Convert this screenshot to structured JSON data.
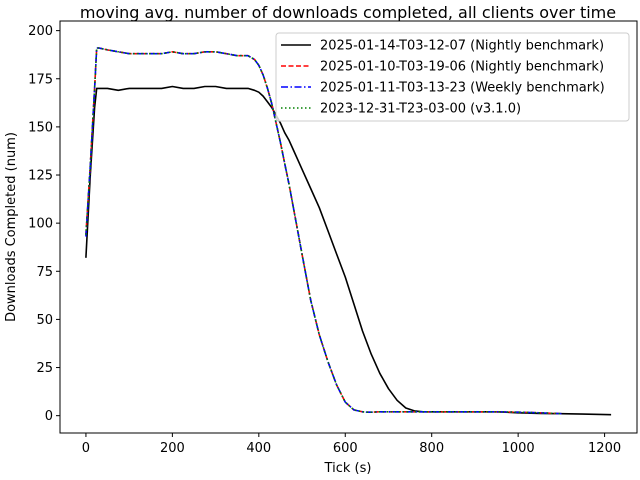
{
  "chart_data": {
    "type": "line",
    "title": "moving avg. number of downloads completed, all clients over time",
    "xlabel": "Tick (s)",
    "ylabel": "Downloads Completed (num)",
    "xlim": [
      -60,
      1275
    ],
    "ylim": [
      -9,
      205
    ],
    "xticks": [
      0,
      200,
      400,
      600,
      800,
      1000,
      1200
    ],
    "yticks": [
      0,
      25,
      50,
      75,
      100,
      125,
      150,
      175,
      200
    ],
    "grid": false,
    "legend_position": "top-right",
    "series": [
      {
        "name": "2025-01-14-T03-12-07 (Nightly benchmark)",
        "color": "#000000",
        "dash": "solid",
        "x": [
          0,
          10,
          20,
          25,
          30,
          50,
          75,
          100,
          125,
          150,
          175,
          200,
          225,
          250,
          275,
          300,
          325,
          350,
          375,
          390,
          400,
          410,
          420,
          430,
          440,
          450,
          460,
          470,
          480,
          490,
          500,
          520,
          540,
          560,
          580,
          600,
          620,
          640,
          660,
          680,
          700,
          720,
          740,
          760,
          780,
          800,
          850,
          900,
          950,
          1000,
          1050,
          1100,
          1150,
          1215
        ],
        "y": [
          82,
          125,
          160,
          170,
          170,
          170,
          169,
          170,
          170,
          170,
          170,
          171,
          170,
          170,
          171,
          171,
          170,
          170,
          170,
          169,
          168,
          166,
          163,
          160,
          156,
          152,
          147,
          143,
          138,
          133,
          128,
          118,
          108,
          96,
          84,
          72,
          58,
          44,
          32,
          22,
          14,
          8,
          4,
          2.5,
          2,
          2,
          2,
          2,
          2,
          1.5,
          1.2,
          1,
          0.8,
          0.5
        ]
      },
      {
        "name": "2025-01-10-T03-19-06 (Nightly benchmark)",
        "color": "#ff0000",
        "dash": "dashed",
        "x": [
          0,
          10,
          20,
          25,
          30,
          50,
          75,
          100,
          125,
          150,
          175,
          200,
          225,
          250,
          275,
          300,
          325,
          350,
          375,
          390,
          400,
          410,
          420,
          430,
          440,
          450,
          460,
          470,
          480,
          500,
          520,
          540,
          560,
          580,
          600,
          620,
          640,
          650,
          660,
          680,
          700,
          750,
          800,
          850,
          900,
          950,
          1000,
          1050,
          1100
        ],
        "y": [
          94,
          130,
          170,
          191,
          191,
          190,
          189,
          188,
          188,
          188,
          188,
          189,
          188,
          188,
          189,
          189,
          188,
          187,
          187,
          185,
          182,
          177,
          170,
          162,
          152,
          142,
          131,
          120,
          108,
          84,
          60,
          42,
          28,
          16,
          7,
          3,
          2,
          1.8,
          1.8,
          2,
          2,
          2,
          2,
          2,
          2,
          2,
          1.8,
          1.5,
          1
        ]
      },
      {
        "name": "2025-01-11-T03-13-23 (Weekly benchmark)",
        "color": "#0000ff",
        "dash": "dashdot",
        "x": [
          0,
          10,
          20,
          25,
          30,
          50,
          75,
          100,
          125,
          150,
          175,
          200,
          225,
          250,
          275,
          300,
          325,
          350,
          375,
          390,
          400,
          410,
          420,
          430,
          440,
          450,
          460,
          470,
          480,
          500,
          520,
          540,
          560,
          580,
          600,
          620,
          640,
          650,
          660,
          680,
          700,
          750,
          800,
          850,
          900,
          950,
          1000,
          1050,
          1100
        ],
        "y": [
          93,
          130,
          170,
          191,
          191,
          190,
          189,
          188,
          188,
          188,
          188,
          189,
          188,
          188,
          189,
          189,
          188,
          187,
          187,
          185,
          182,
          177,
          170,
          162,
          152,
          142,
          131,
          120,
          108,
          84,
          60,
          42,
          28,
          16,
          7,
          3,
          2,
          1.8,
          1.8,
          2,
          2,
          2,
          2,
          2,
          2,
          2,
          1.8,
          1.5,
          1
        ]
      },
      {
        "name": "2023-12-31-T23-03-00 (v3.1.0)",
        "color": "#008000",
        "dash": "dotted",
        "x": [
          0,
          10,
          20,
          25,
          30,
          50,
          75,
          100,
          125,
          150,
          175,
          200,
          225,
          250,
          275,
          300,
          325,
          350,
          375,
          390,
          400,
          410,
          420,
          430,
          440,
          450,
          460,
          470,
          480,
          500,
          520,
          540,
          560,
          580,
          600,
          620,
          640,
          650,
          660,
          680,
          700,
          750,
          800,
          850,
          900,
          950,
          1000,
          1050,
          1100
        ],
        "y": [
          94,
          130,
          170,
          191,
          191,
          190,
          189,
          188,
          188,
          188,
          188,
          189,
          188,
          188,
          189,
          189,
          188,
          187,
          187,
          185,
          182,
          177,
          170,
          162,
          152,
          142,
          131,
          120,
          108,
          84,
          60,
          42,
          28,
          16,
          7,
          3,
          2,
          1.8,
          1.8,
          2,
          2,
          2,
          2,
          2,
          2,
          2,
          1.8,
          1.5,
          1
        ]
      }
    ]
  }
}
